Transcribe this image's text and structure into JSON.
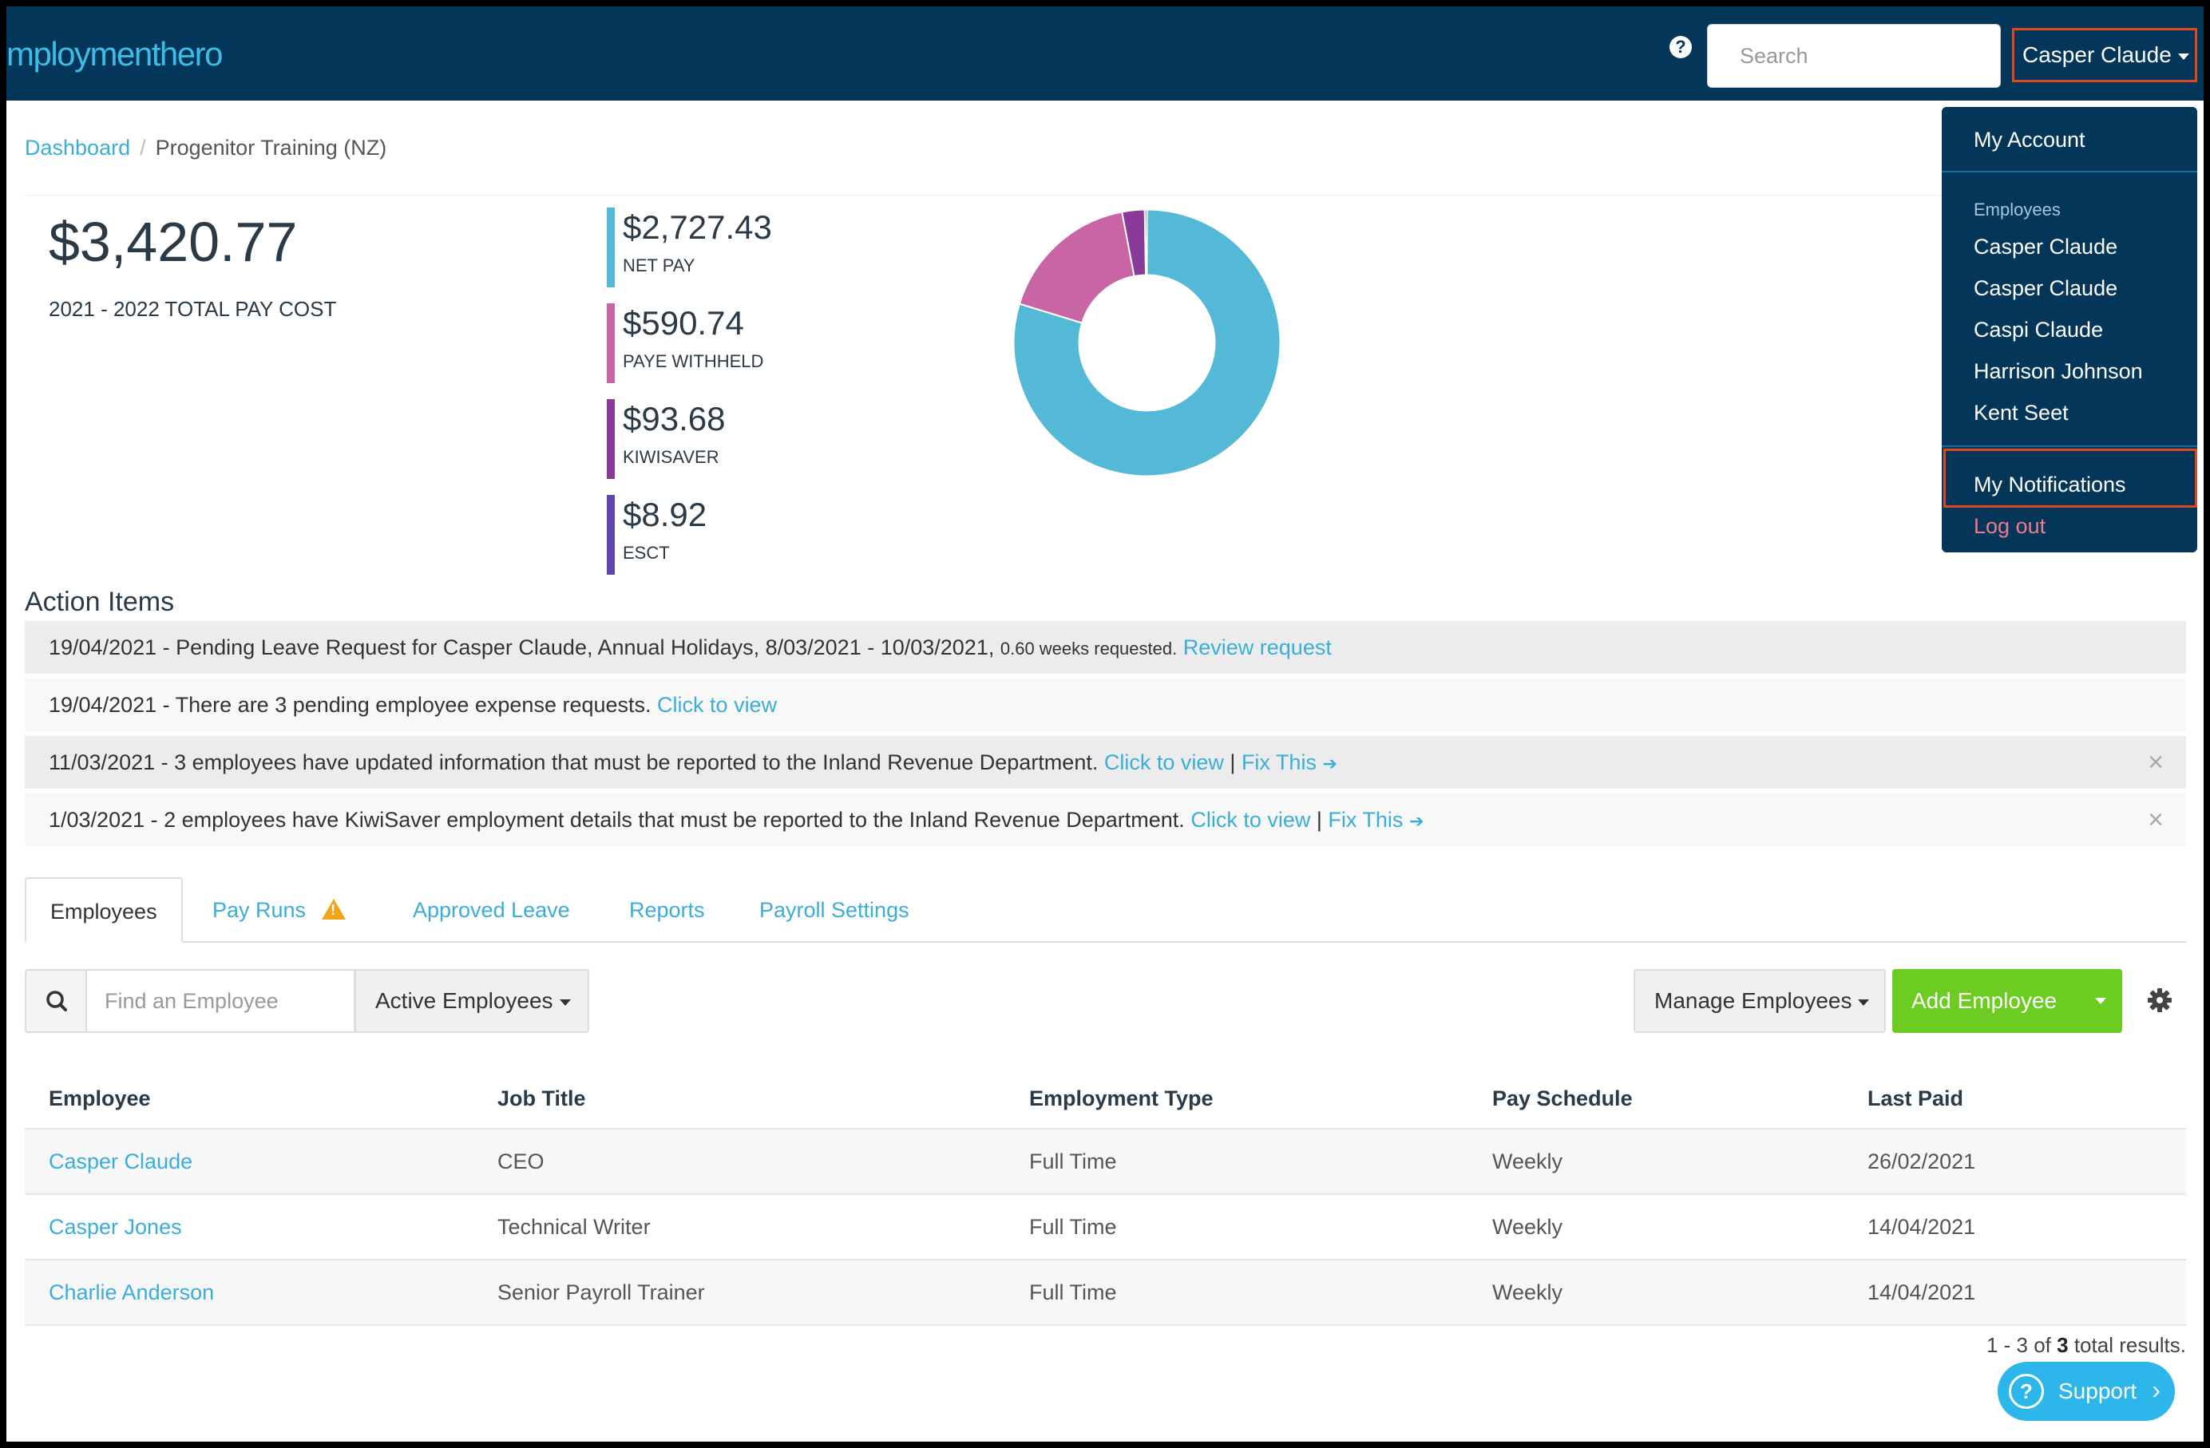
{
  "header": {
    "logo_text": "mploymenthero",
    "search_placeholder": "Search",
    "user_name": "Casper Claude"
  },
  "breadcrumb": {
    "root": "Dashboard",
    "current": "Progenitor Training (NZ)"
  },
  "summary": {
    "total": "$3,420.77",
    "total_label": "2021 - 2022 TOTAL PAY COST",
    "stats": [
      {
        "amount": "$2,727.43",
        "label": "NET PAY",
        "color": "#53b9d6"
      },
      {
        "amount": "$590.74",
        "label": "PAYE WITHHELD",
        "color": "#c964a5"
      },
      {
        "amount": "$93.68",
        "label": "KIWISAVER",
        "color": "#8a3a98"
      },
      {
        "amount": "$8.92",
        "label": "ESCT",
        "color": "#5f45b0"
      }
    ]
  },
  "chart_data": {
    "type": "pie",
    "categories": [
      "NET PAY",
      "PAYE WITHHELD",
      "KIWISAVER",
      "ESCT"
    ],
    "values": [
      2727.43,
      590.74,
      93.68,
      8.92
    ],
    "colors": [
      "#53b9d6",
      "#c964a5",
      "#8a3a98",
      "#5f45b0"
    ],
    "title": "",
    "donut": true
  },
  "user_menu": {
    "my_account": "My Account",
    "employees_header": "Employees",
    "employees": [
      "Casper Claude",
      "Casper Claude",
      "Caspi Claude",
      "Harrison Johnson",
      "Kent Seet"
    ],
    "my_notifications": "My Notifications",
    "log_out": "Log out"
  },
  "action_items": {
    "title": "Action Items",
    "rows": [
      {
        "text": "19/04/2021 - Pending Leave Request for Casper Claude, Annual Holidays, 8/03/2021 - 10/03/2021,",
        "small": "0.60 weeks requested.",
        "link1": "Review request",
        "link2": ""
      },
      {
        "text": "19/04/2021 - There are 3 pending employee expense requests.",
        "small": "",
        "link1": "Click to view",
        "link2": ""
      },
      {
        "text": "11/03/2021 - 3 employees have updated information that must be reported to the Inland Revenue Department.",
        "small": "",
        "link1": "Click to view",
        "link2": "Fix This"
      },
      {
        "text": "1/03/2021 - 2 employees have KiwiSaver employment details that must be reported to the Inland Revenue Department.",
        "small": "",
        "link1": "Click to view",
        "link2": "Fix This"
      }
    ],
    "close_glyph": "×",
    "separator": "|",
    "arrow": "➔"
  },
  "tabs": [
    "Employees",
    "Pay Runs",
    "Approved Leave",
    "Reports",
    "Payroll Settings"
  ],
  "toolbar": {
    "find_placeholder": "Find an Employee",
    "filter_label": "Active Employees",
    "manage_label": "Manage Employees",
    "add_label": "Add Employee"
  },
  "table": {
    "headers": [
      "Employee",
      "Job Title",
      "Employment Type",
      "Pay Schedule",
      "Last Paid"
    ],
    "rows": [
      [
        "Casper Claude",
        "CEO",
        "Full Time",
        "Weekly",
        "26/02/2021"
      ],
      [
        "Casper Jones",
        "Technical Writer",
        "Full Time",
        "Weekly",
        "14/04/2021"
      ],
      [
        "Charlie Anderson",
        "Senior Payroll Trainer",
        "Full Time",
        "Weekly",
        "14/04/2021"
      ]
    ],
    "results_prefix": "1 - 3 of",
    "results_count": "3",
    "results_suffix": "total results."
  },
  "support": {
    "label": "Support",
    "icon_glyph": "?",
    "chevron": "›"
  }
}
